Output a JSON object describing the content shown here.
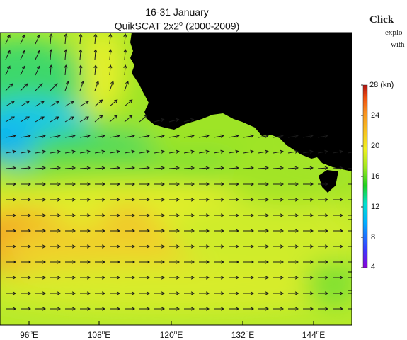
{
  "title": {
    "period": "16-31 January",
    "dataset": "QuikSCAT 2x2",
    "degree_mark": "o",
    "years": " (2000-2009)"
  },
  "side_note": {
    "line1": "Click",
    "line2": "explo",
    "line3": "with"
  },
  "colorbar": {
    "unit_label": "28 (kn)",
    "ticks": [
      "24",
      "20",
      "16",
      "12",
      "8",
      "4"
    ],
    "range_kn": [
      4,
      28
    ],
    "colors": [
      "#8a00d8",
      "#3a3aff",
      "#00b0ff",
      "#00e0d0",
      "#20d020",
      "#a0e820",
      "#f0f020",
      "#f8c020",
      "#f89020",
      "#f05010",
      "#b01010"
    ]
  },
  "map": {
    "longitude_labels": [
      {
        "deg": "96",
        "unit": "E",
        "lon": 96
      },
      {
        "deg": "108",
        "unit": "E",
        "lon": 108
      },
      {
        "deg": "120",
        "unit": "E",
        "lon": 120
      },
      {
        "deg": "132",
        "unit": "E",
        "lon": 132
      },
      {
        "deg": "144",
        "unit": "E",
        "lon": 144
      }
    ],
    "degree_mark": "o",
    "land_color": "#000000",
    "wind_arrows": "vector-arrows",
    "wind_field": [
      {
        "region": "north-west",
        "direction": "north",
        "speed_kn": 14
      },
      {
        "region": "west-central",
        "direction": "north-east",
        "speed_kn": 11
      },
      {
        "region": "central",
        "direction": "east",
        "speed_kn": 17
      },
      {
        "region": "south-west",
        "direction": "east",
        "speed_kn": 22
      },
      {
        "region": "south",
        "direction": "east",
        "speed_kn": 18
      }
    ]
  }
}
